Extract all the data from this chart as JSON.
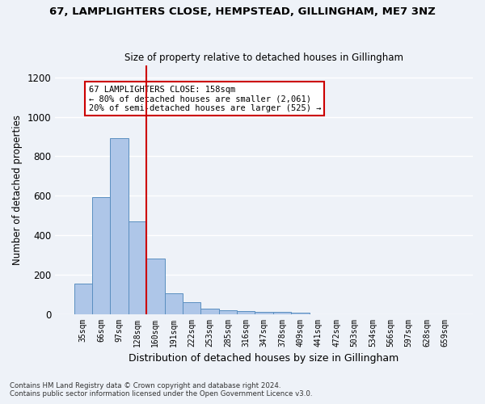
{
  "title_line1": "67, LAMPLIGHTERS CLOSE, HEMPSTEAD, GILLINGHAM, ME7 3NZ",
  "title_line2": "Size of property relative to detached houses in Gillingham",
  "xlabel": "Distribution of detached houses by size in Gillingham",
  "ylabel": "Number of detached properties",
  "bar_labels": [
    "35sqm",
    "66sqm",
    "97sqm",
    "128sqm",
    "160sqm",
    "191sqm",
    "222sqm",
    "253sqm",
    "285sqm",
    "316sqm",
    "347sqm",
    "378sqm",
    "409sqm",
    "441sqm",
    "472sqm",
    "503sqm",
    "534sqm",
    "566sqm",
    "597sqm",
    "628sqm",
    "659sqm"
  ],
  "bar_values": [
    152,
    591,
    893,
    471,
    281,
    105,
    60,
    28,
    20,
    13,
    10,
    10,
    7,
    0,
    0,
    0,
    0,
    0,
    0,
    0,
    0
  ],
  "bar_color": "#aec6e8",
  "bar_edge_color": "#5a8fc0",
  "vline_color": "#cc0000",
  "annotation_text": "67 LAMPLIGHTERS CLOSE: 158sqm\n← 80% of detached houses are smaller (2,061)\n20% of semi-detached houses are larger (525) →",
  "annotation_box_color": "#ffffff",
  "annotation_box_edge": "#cc0000",
  "ylim": [
    0,
    1260
  ],
  "yticks": [
    0,
    200,
    400,
    600,
    800,
    1000,
    1200
  ],
  "footnote1": "Contains HM Land Registry data © Crown copyright and database right 2024.",
  "footnote2": "Contains public sector information licensed under the Open Government Licence v3.0.",
  "bg_color": "#eef2f8",
  "grid_color": "#ffffff"
}
